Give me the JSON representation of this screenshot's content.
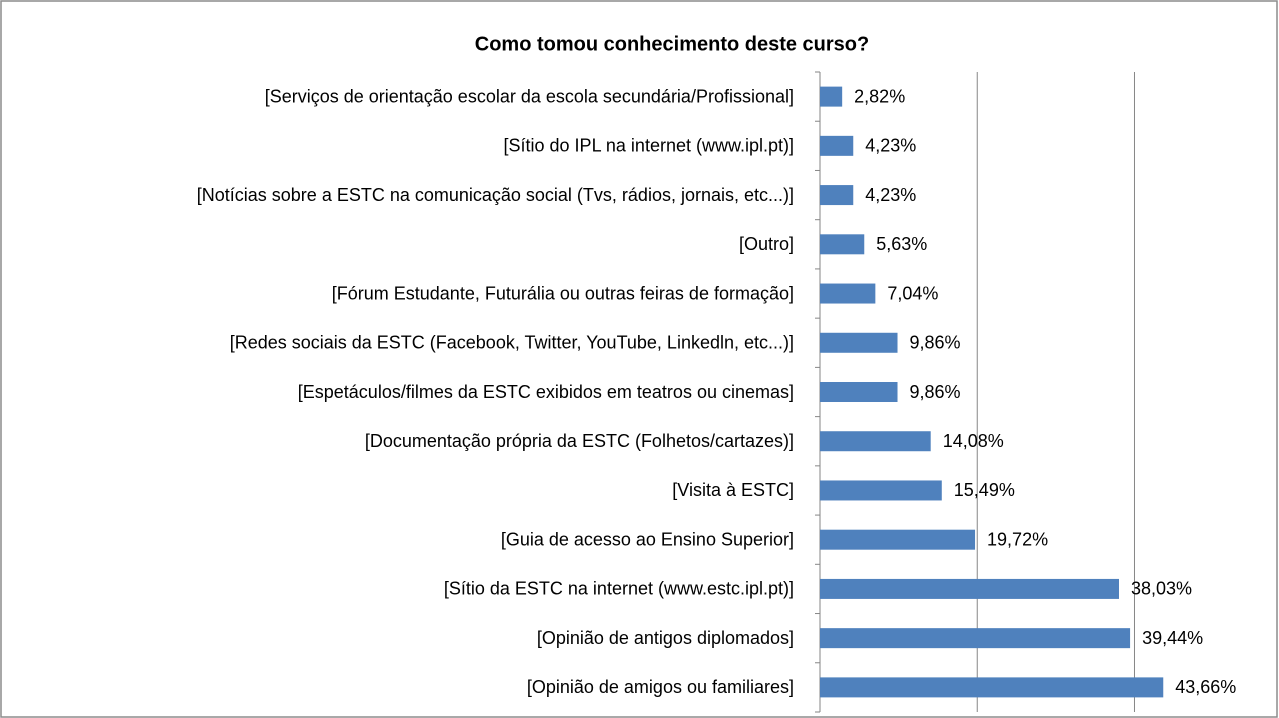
{
  "chart_data": {
    "type": "hbar",
    "title": "Como tomou conhecimento deste curso?",
    "categories": [
      "[Serviços de orientação escolar da escola secundária/Profissional]",
      "[Sítio do IPL na internet (www.ipl.pt)]",
      "[Notícias sobre a ESTC na comunicação social (Tvs, rádios, jornais, etc...)]",
      "[Outro]",
      "[Fórum Estudante, Futurália ou outras feiras de formação]",
      "[Redes sociais da ESTC (Facebook, Twitter, YouTube, Linkedln, etc...)]",
      "[Espetáculos/filmes da ESTC exibidos em teatros ou cinemas]",
      "[Documentação própria da ESTC (Folhetos/cartazes)]",
      "[Visita à ESTC]",
      "[Guia de acesso ao Ensino Superior]",
      "[Sítio da ESTC na internet (www.estc.ipl.pt)]",
      "[Opinião de antigos diplomados]",
      "[Opinião de amigos ou familiares]"
    ],
    "values": [
      2.82,
      4.23,
      4.23,
      5.63,
      7.04,
      9.86,
      9.86,
      14.08,
      15.49,
      19.72,
      38.03,
      39.44,
      43.66
    ],
    "value_labels": [
      "2,82%",
      "4,23%",
      "4,23%",
      "5,63%",
      "7,04%",
      "9,86%",
      "9,86%",
      "14,08%",
      "15,49%",
      "19,72%",
      "38,03%",
      "39,44%",
      "43,66%"
    ],
    "color": "#4f81bd",
    "xlim": [
      0,
      58
    ],
    "xticks": [
      0,
      20,
      40
    ],
    "grid": true
  }
}
